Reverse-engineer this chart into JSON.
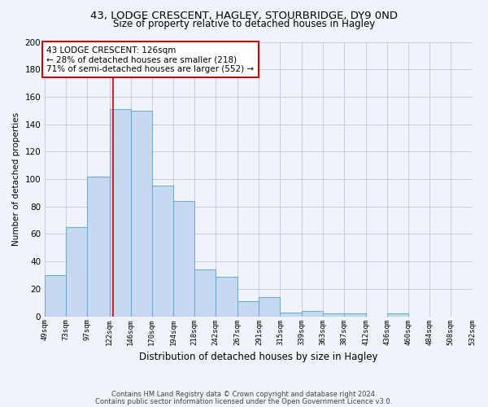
{
  "title1": "43, LODGE CRESCENT, HAGLEY, STOURBRIDGE, DY9 0ND",
  "title2": "Size of property relative to detached houses in Hagley",
  "xlabel": "Distribution of detached houses by size in Hagley",
  "ylabel": "Number of detached properties",
  "tick_labels": [
    "49sqm",
    "73sqm",
    "97sqm",
    "122sqm",
    "146sqm",
    "170sqm",
    "194sqm",
    "218sqm",
    "242sqm",
    "267sqm",
    "291sqm",
    "315sqm",
    "339sqm",
    "363sqm",
    "387sqm",
    "412sqm",
    "436sqm",
    "460sqm",
    "484sqm",
    "508sqm",
    "532sqm"
  ],
  "bin_edges": [
    49,
    73,
    97,
    122,
    146,
    170,
    194,
    218,
    242,
    267,
    291,
    315,
    339,
    363,
    387,
    412,
    436,
    460,
    484,
    508,
    532
  ],
  "bar_heights": [
    30,
    65,
    102,
    151,
    150,
    95,
    84,
    34,
    29,
    11,
    14,
    3,
    4,
    2,
    2,
    0,
    2,
    0,
    0,
    0
  ],
  "bar_color": "#c6d9f0",
  "bar_edge_color": "#6baed6",
  "vline_x": 126,
  "vline_color": "#cc0000",
  "annotation_text": "43 LODGE CRESCENT: 126sqm\n← 28% of detached houses are smaller (218)\n71% of semi-detached houses are larger (552) →",
  "annotation_box_color": "white",
  "annotation_box_edge": "#cc0000",
  "ylim": [
    0,
    200
  ],
  "yticks": [
    0,
    20,
    40,
    60,
    80,
    100,
    120,
    140,
    160,
    180,
    200
  ],
  "bg_color": "#f0f4fa",
  "grid_color": "#b8c8dc",
  "title1_fontsize": 9.5,
  "title2_fontsize": 8.5,
  "footer1": "Contains HM Land Registry data © Crown copyright and database right 2024.",
  "footer2": "Contains public sector information licensed under the Open Government Licence v3.0."
}
